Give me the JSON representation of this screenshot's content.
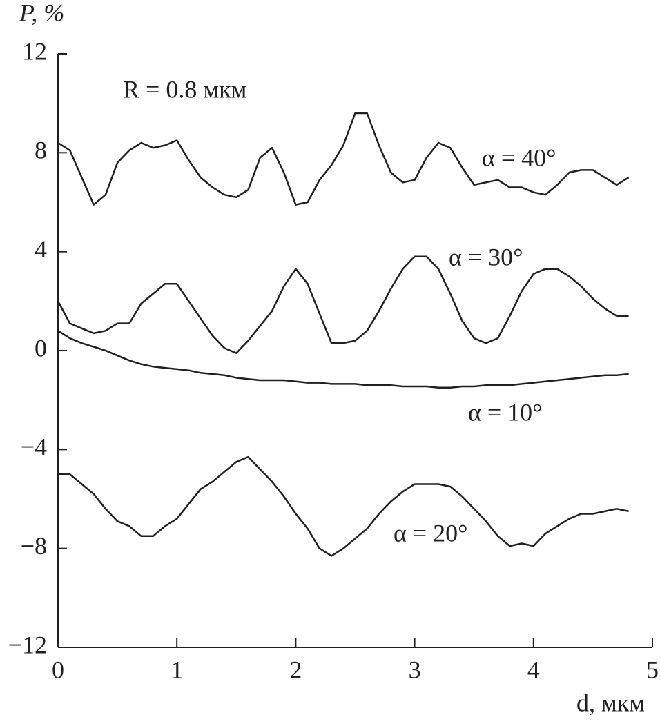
{
  "chart_data": {
    "type": "line",
    "y_label": "P, %",
    "x_label": "d, мкм",
    "annotations": [
      {
        "text": "R = 0.8 мкм"
      }
    ],
    "x": [
      0,
      0.1,
      0.2,
      0.3,
      0.4,
      0.5,
      0.6,
      0.7,
      0.8,
      0.9,
      1.0,
      1.1,
      1.2,
      1.3,
      1.4,
      1.5,
      1.6,
      1.7,
      1.8,
      1.9,
      2.0,
      2.1,
      2.2,
      2.3,
      2.4,
      2.5,
      2.6,
      2.7,
      2.8,
      2.9,
      3.0,
      3.1,
      3.2,
      3.3,
      3.4,
      3.5,
      3.6,
      3.7,
      3.8,
      3.9,
      4.0,
      4.1,
      4.2,
      4.3,
      4.4,
      4.5,
      4.6,
      4.7,
      4.8
    ],
    "series": [
      {
        "name": "α = 40°",
        "color": "#231f20",
        "values": [
          8.4,
          8.1,
          7.0,
          5.9,
          6.3,
          7.6,
          8.1,
          8.4,
          8.2,
          8.3,
          8.5,
          7.7,
          7.0,
          6.6,
          6.3,
          6.2,
          6.5,
          7.8,
          8.2,
          7.2,
          5.9,
          6.0,
          6.9,
          7.5,
          8.3,
          9.6,
          9.6,
          8.3,
          7.2,
          6.8,
          6.9,
          7.8,
          8.4,
          8.2,
          7.4,
          6.7,
          6.8,
          6.9,
          6.6,
          6.6,
          6.4,
          6.3,
          6.7,
          7.2,
          7.3,
          7.3,
          7.0,
          6.7,
          7.0
        ]
      },
      {
        "name": "α = 30°",
        "color": "#231f20",
        "values": [
          2.0,
          1.1,
          0.9,
          0.7,
          0.8,
          1.1,
          1.1,
          1.9,
          2.3,
          2.7,
          2.7,
          2.0,
          1.3,
          0.6,
          0.1,
          -0.1,
          0.4,
          1.0,
          1.6,
          2.6,
          3.3,
          2.7,
          1.5,
          0.3,
          0.3,
          0.4,
          0.8,
          1.6,
          2.5,
          3.3,
          3.8,
          3.8,
          3.3,
          2.3,
          1.2,
          0.5,
          0.3,
          0.5,
          1.4,
          2.4,
          3.1,
          3.3,
          3.3,
          3.0,
          2.6,
          2.1,
          1.7,
          1.4,
          1.4
        ]
      },
      {
        "name": "α = 10°",
        "color": "#231f20",
        "values": [
          0.8,
          0.5,
          0.3,
          0.15,
          0.0,
          -0.2,
          -0.4,
          -0.55,
          -0.65,
          -0.7,
          -0.75,
          -0.8,
          -0.9,
          -0.95,
          -1.0,
          -1.1,
          -1.15,
          -1.2,
          -1.2,
          -1.2,
          -1.25,
          -1.3,
          -1.3,
          -1.35,
          -1.35,
          -1.35,
          -1.4,
          -1.4,
          -1.4,
          -1.45,
          -1.45,
          -1.45,
          -1.5,
          -1.5,
          -1.45,
          -1.45,
          -1.4,
          -1.4,
          -1.4,
          -1.35,
          -1.3,
          -1.25,
          -1.2,
          -1.15,
          -1.1,
          -1.05,
          -1.0,
          -1.0,
          -0.95
        ]
      },
      {
        "name": "α = 20°",
        "color": "#231f20",
        "values": [
          -5.0,
          -5.0,
          -5.4,
          -5.8,
          -6.4,
          -6.9,
          -7.1,
          -7.5,
          -7.5,
          -7.1,
          -6.8,
          -6.2,
          -5.6,
          -5.3,
          -4.9,
          -4.5,
          -4.3,
          -4.8,
          -5.3,
          -5.9,
          -6.6,
          -7.2,
          -8.0,
          -8.3,
          -8.0,
          -7.6,
          -7.2,
          -6.6,
          -6.1,
          -5.7,
          -5.4,
          -5.4,
          -5.4,
          -5.5,
          -5.9,
          -6.4,
          -6.9,
          -7.5,
          -7.9,
          -7.8,
          -7.9,
          -7.4,
          -7.1,
          -6.8,
          -6.6,
          -6.6,
          -6.5,
          -6.4,
          -6.5
        ]
      }
    ],
    "xlim": [
      0,
      5
    ],
    "xticks": [
      0,
      1,
      2,
      3,
      4,
      5
    ],
    "ylim": [
      -12,
      12
    ],
    "yticks": [
      {
        "value": -12,
        "label": "−12"
      },
      {
        "value": -8,
        "label": "−8"
      },
      {
        "value": -4,
        "label": "−4"
      },
      0,
      4,
      8,
      12
    ],
    "grid": false
  }
}
